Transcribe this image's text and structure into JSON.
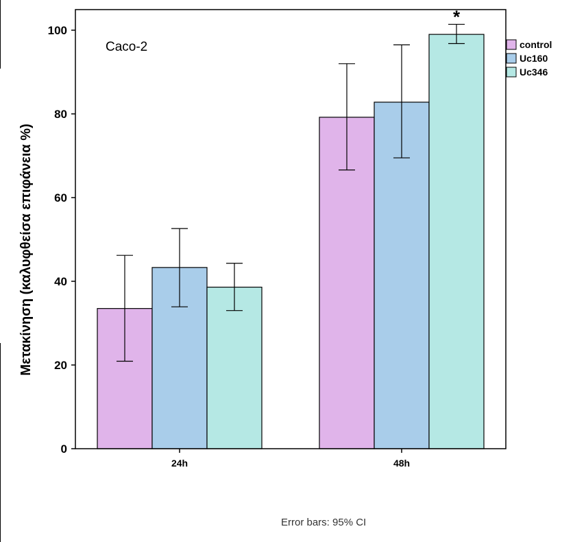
{
  "chart_data": {
    "type": "bar",
    "title": "Caco-2",
    "ylabel": "Μετακίνηση (καλυφθείσα επιφάνεια %)",
    "xlabel": "",
    "ylim": [
      0,
      100
    ],
    "yticks": [
      0,
      20,
      40,
      60,
      80,
      100
    ],
    "categories": [
      "24h",
      "48h"
    ],
    "legend_position": "right",
    "grid": false,
    "series": [
      {
        "name": "control",
        "color": "#e0b4ea",
        "values": [
          33.5,
          79.2
        ],
        "ci_low": [
          20.9,
          66.6
        ],
        "ci_high": [
          46.2,
          92.0
        ]
      },
      {
        "name": "Uc160",
        "color": "#a9cdea",
        "values": [
          43.3,
          82.8
        ],
        "ci_low": [
          33.9,
          69.5
        ],
        "ci_high": [
          52.6,
          96.5
        ]
      },
      {
        "name": "Uc346",
        "color": "#b5e8e4",
        "values": [
          38.6,
          99.0
        ],
        "ci_low": [
          33.0,
          96.8
        ],
        "ci_high": [
          44.3,
          101.4
        ]
      }
    ],
    "annotations": [
      {
        "text": "*",
        "series": "Uc346",
        "category": "48h"
      }
    ],
    "footnote": "Error bars: 95% CI"
  }
}
